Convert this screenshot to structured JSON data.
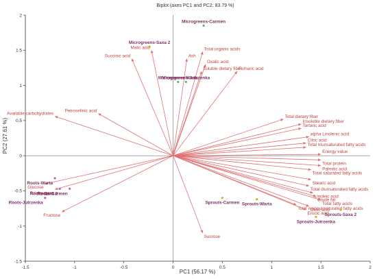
{
  "chart_data": {
    "type": "scatter",
    "title": "Biplot (axes PC1 and PC2: 83.79 %)",
    "xlabel": "PC1 (56.17 %)",
    "ylabel": "PC2 (27.61 %)",
    "xlim": [
      -1.5,
      2
    ],
    "ylim": [
      -1.5,
      2
    ],
    "xticks": [
      "-1.5",
      "-1",
      "-0.5",
      "0",
      "0.5",
      "1",
      "1.5",
      "2"
    ],
    "yticks": [
      "-1.5",
      "-1",
      "-0.5",
      "0",
      "0.5",
      "1",
      "1.5",
      "2"
    ],
    "grid": false,
    "colors": {
      "variable": "#e07070",
      "variable_text": "#c04040",
      "observation": "#7a3060",
      "axis": "#333333"
    },
    "variables": [
      {
        "name": "Total organic acids",
        "x": 0.3,
        "y": 1.48
      },
      {
        "name": "Ash",
        "x": 0.14,
        "y": 1.38
      },
      {
        "name": "Oxalic acid",
        "x": 0.33,
        "y": 1.3
      },
      {
        "name": "Soluble dietary fiber",
        "x": 0.29,
        "y": 1.2
      },
      {
        "name": "Fumaric acid",
        "x": 0.65,
        "y": 1.2
      },
      {
        "name": "Malic acid",
        "x": -0.22,
        "y": 1.5
      },
      {
        "name": "Succinic acid",
        "x": -0.42,
        "y": 1.38
      },
      {
        "name": "Petroselinic acid",
        "x": -0.76,
        "y": 0.6
      },
      {
        "name": "Available carbohydrates",
        "x": -1.2,
        "y": 0.56
      },
      {
        "name": "Total dietary fiber",
        "x": 1.12,
        "y": 0.52
      },
      {
        "name": "Insoluble dietary fiber",
        "x": 1.3,
        "y": 0.45
      },
      {
        "name": "Tartaric acid",
        "x": 1.3,
        "y": 0.39
      },
      {
        "name": "alpha Linolenic acid",
        "x": 1.38,
        "y": 0.27
      },
      {
        "name": "Citric acid",
        "x": 1.35,
        "y": 0.18
      },
      {
        "name": "Total triunsaturated fatty acids",
        "x": 1.35,
        "y": 0.12
      },
      {
        "name": "Energy value",
        "x": 1.5,
        "y": 0.02
      },
      {
        "name": "Total protein",
        "x": 1.5,
        "y": -0.06
      },
      {
        "name": "Palmitic acid",
        "x": 1.5,
        "y": -0.14
      },
      {
        "name": "Total saturated fatty acids",
        "x": 1.4,
        "y": -0.2
      },
      {
        "name": "Stearic acid",
        "x": 1.4,
        "y": -0.34
      },
      {
        "name": "Total diunsaturated fatty acids",
        "x": 1.38,
        "y": -0.43
      },
      {
        "name": "Linoleic acid",
        "x": 1.42,
        "y": -0.53
      },
      {
        "name": "Crude fat",
        "x": 1.45,
        "y": -0.58
      },
      {
        "name": "Total fatty acids",
        "x": 1.5,
        "y": -0.63
      },
      {
        "name": "Total monounsaturated fatty acids",
        "x": 1.25,
        "y": -0.7
      },
      {
        "name": "Oleic acid",
        "x": 1.38,
        "y": -0.72
      },
      {
        "name": "Erucic acid",
        "x": 1.35,
        "y": -0.77
      },
      {
        "name": "Sucrose",
        "x": 0.3,
        "y": -1.1
      },
      {
        "name": "Glucose",
        "x": -1.3,
        "y": -0.4
      },
      {
        "name": "Total sugars",
        "x": -1.2,
        "y": -0.48
      },
      {
        "name": "Fructose",
        "x": -1.13,
        "y": -0.8
      }
    ],
    "observations": [
      {
        "name": "Microgreens-Carmen",
        "x": 0.31,
        "y": 1.85,
        "color": "#5cb85c"
      },
      {
        "name": "Microgreens-Saxa 2",
        "x": -0.24,
        "y": 1.55,
        "color": "#c0b000"
      },
      {
        "name": "Microgreens-Jutrzenka",
        "x": 0.13,
        "y": 1.05,
        "color": "#5cb85c"
      },
      {
        "name": "Microgreens-Warta",
        "x": 0.05,
        "y": 1.05,
        "color": "#5cb85c"
      },
      {
        "name": "Roots-Warta",
        "x": -1.2,
        "y": -0.32,
        "color": "#c060c0"
      },
      {
        "name": "Roots-Saxa 2",
        "x": -1.15,
        "y": -0.47,
        "color": "#c060c0"
      },
      {
        "name": "Roots-Carmen",
        "x": -1.05,
        "y": -0.47,
        "color": "#c060c0"
      },
      {
        "name": "Roots-Jutrzenka",
        "x": -1.3,
        "y": -0.6,
        "color": "#c060c0"
      },
      {
        "name": "Sprouts-Carmen",
        "x": 0.5,
        "y": -0.6,
        "color": "#e0b000"
      },
      {
        "name": "Sprouts-Warta",
        "x": 0.85,
        "y": -0.62,
        "color": "#e0b000"
      },
      {
        "name": "Sprouts-Saxa 2",
        "x": 1.7,
        "y": -0.77,
        "color": "#e0b000"
      },
      {
        "name": "Sprouts-Jutrzenka",
        "x": 1.45,
        "y": -0.87,
        "color": "#e0b000"
      }
    ]
  }
}
